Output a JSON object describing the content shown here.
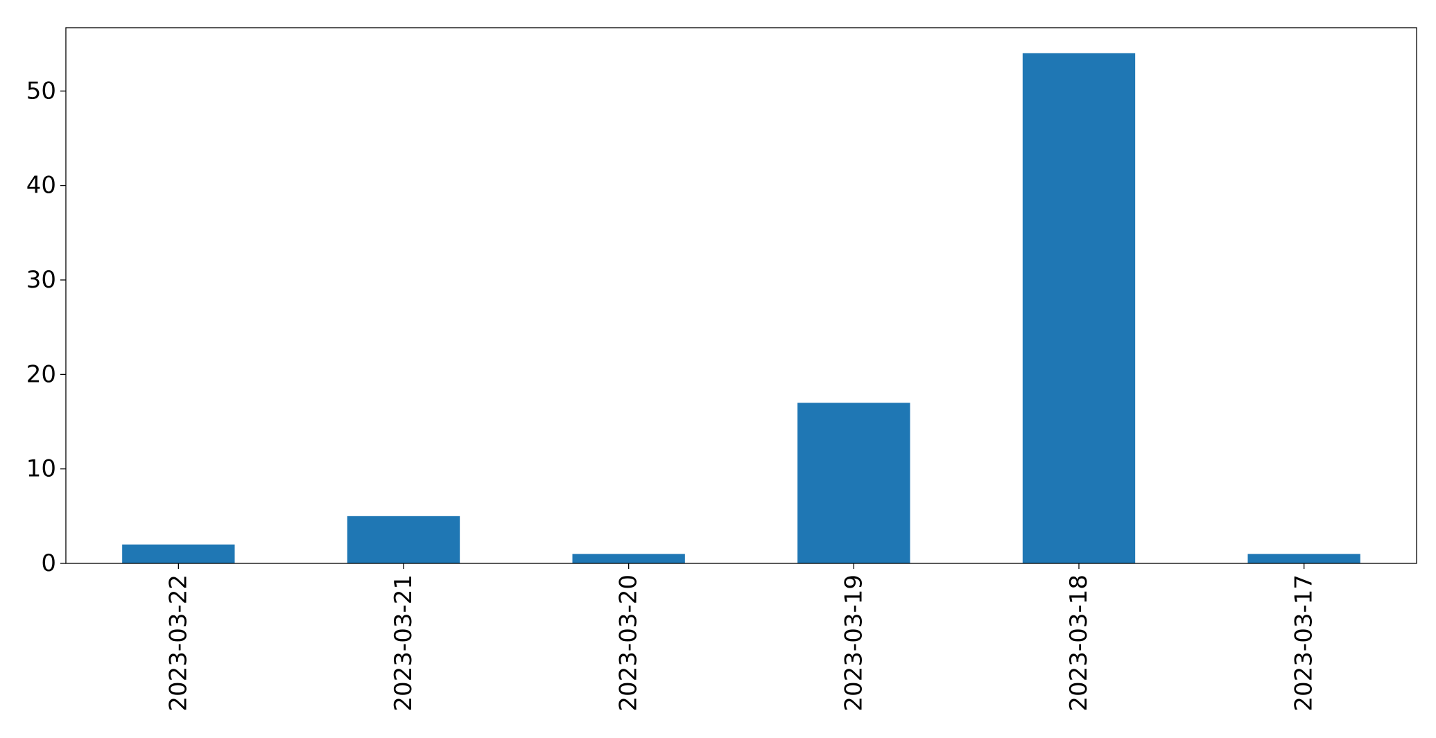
{
  "chart_data": {
    "type": "bar",
    "categories": [
      "2023-03-22",
      "2023-03-21",
      "2023-03-20",
      "2023-03-19",
      "2023-03-18",
      "2023-03-17"
    ],
    "values": [
      2,
      5,
      1,
      17,
      54,
      1
    ],
    "title": "",
    "xlabel": "",
    "ylabel": "",
    "ylim": [
      0,
      56.7
    ],
    "yticks": [
      0,
      10,
      20,
      30,
      40,
      50
    ],
    "xtick_rotation": "vertical",
    "grid": false,
    "legend": "none",
    "bar_color": "#1f77b4"
  }
}
